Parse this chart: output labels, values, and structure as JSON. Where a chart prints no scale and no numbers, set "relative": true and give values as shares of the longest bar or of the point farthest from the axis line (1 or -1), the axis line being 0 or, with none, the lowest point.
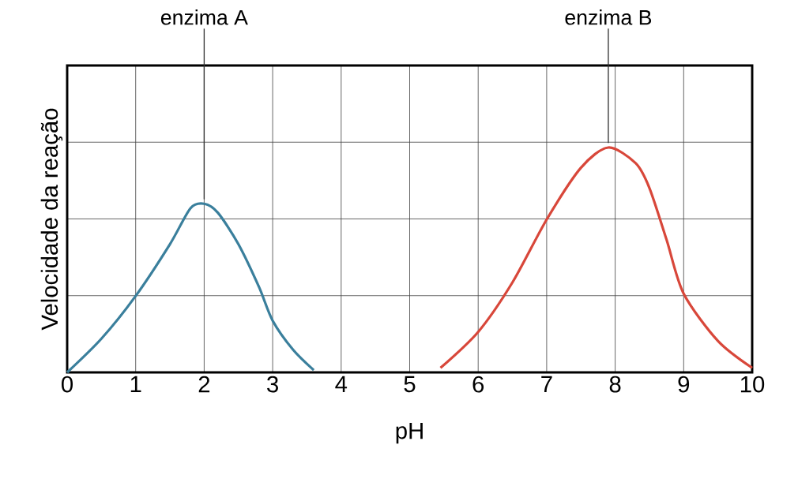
{
  "chart_data": {
    "type": "line",
    "relative": true,
    "xlabel": "pH",
    "ylabel": "Velocidade da reação",
    "xlim": [
      0,
      10
    ],
    "xticks": [
      0,
      1,
      2,
      3,
      4,
      5,
      6,
      7,
      8,
      9,
      10
    ],
    "grid": true,
    "series": [
      {
        "name": "enzima A",
        "color": "#3a7f9c",
        "x": [
          0,
          0.5,
          1,
          1.5,
          1.8,
          2.0,
          2.2,
          2.5,
          2.8,
          3,
          3.3,
          3.6
        ],
        "values": [
          0,
          0.15,
          0.34,
          0.57,
          0.73,
          0.75,
          0.71,
          0.57,
          0.38,
          0.23,
          0.1,
          0.01
        ]
      },
      {
        "name": "enzima B",
        "color": "#d8473a",
        "x": [
          5.45,
          6,
          6.5,
          7,
          7.5,
          7.9,
          8.3,
          8.5,
          8.75,
          9,
          9.5,
          10
        ],
        "values": [
          0.02,
          0.18,
          0.4,
          0.68,
          0.91,
          1,
          0.93,
          0.82,
          0.59,
          0.35,
          0.14,
          0.02
        ]
      }
    ]
  }
}
